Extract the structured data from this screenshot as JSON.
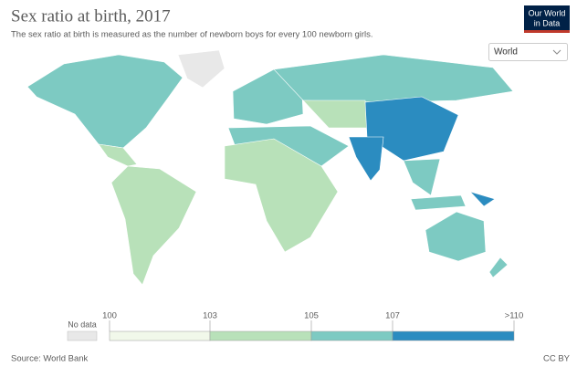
{
  "header": {
    "title": "Sex ratio at birth, 2017",
    "subtitle": "The sex ratio at birth is measured as the number of newborn boys for every 100 newborn girls.",
    "logo": [
      "Our World",
      "in Data"
    ]
  },
  "selector": "World",
  "legend": {
    "no_data": "No data",
    "no_data_color": "#e8e8e8",
    "bins": [
      100,
      103,
      105,
      107,
      {
        "value": 110,
        "label": ">110"
      }
    ],
    "colors": [
      "#f1f8ea",
      "#b8e1b9",
      "#7dcac2",
      "#2b8cc0"
    ]
  },
  "footer": {
    "source": "Source: World Bank",
    "license": "CC BY"
  }
}
